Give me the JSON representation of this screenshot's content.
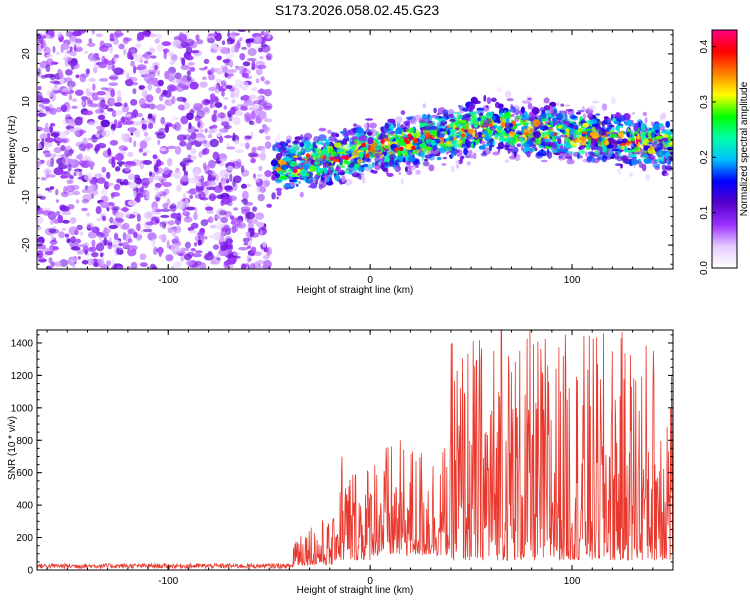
{
  "title": "S173.2026.058.02.45.G23",
  "chart_data": [
    {
      "type": "heatmap",
      "xlabel": "Height of straight line (km)",
      "ylabel": "Frequency (Hz)",
      "xlim": [
        -165,
        150
      ],
      "ylim": [
        -25,
        25
      ],
      "x_ticks": [
        -100,
        0,
        100
      ],
      "y_ticks": [
        -20,
        -10,
        0,
        10,
        20
      ],
      "colorbar": {
        "label": "Normalized spectral amplitude",
        "range": [
          0.0,
          0.43
        ],
        "ticks": [
          0.0,
          0.1,
          0.2,
          0.3,
          0.4
        ],
        "tick_labels": [
          "0.0",
          "0.1",
          "0.2",
          "0.3",
          "0.4"
        ],
        "colormap": [
          "#ffffff",
          "#e6ccff",
          "#9b30ff",
          "#5500cc",
          "#0000ff",
          "#00bfff",
          "#00ffaa",
          "#00ff00",
          "#ffff00",
          "#ff8000",
          "#ff0000",
          "#ff0080"
        ]
      },
      "regions": [
        {
          "x": [
            -165,
            -50
          ],
          "freq_band": [
            -25,
            25
          ],
          "typical_amplitude": 0.06
        },
        {
          "x": [
            -48,
            150
          ],
          "freq_center_start": -4,
          "freq_center_peak": 5,
          "freq_center_peak_x": 60,
          "freq_center_end": 1,
          "band_halfwidth": 6,
          "peak_amplitude": 0.42
        }
      ]
    },
    {
      "type": "line",
      "xlabel": "Height of straight line (km)",
      "ylabel": "SNR (10 * v/v)",
      "xlim": [
        -165,
        150
      ],
      "ylim": [
        0,
        1480
      ],
      "x_ticks": [
        -100,
        0,
        100
      ],
      "y_ticks": [
        0,
        200,
        400,
        600,
        800,
        1000,
        1200,
        1400
      ],
      "color": "#e8372c",
      "segments": [
        {
          "x": [
            -165,
            -38
          ],
          "snr_range": [
            10,
            40
          ]
        },
        {
          "x": [
            -38,
            -18
          ],
          "snr_range": [
            50,
            320
          ]
        },
        {
          "x": [
            -18,
            0
          ],
          "snr_range": [
            100,
            700
          ]
        },
        {
          "x": [
            0,
            40
          ],
          "snr_range": [
            150,
            800
          ]
        },
        {
          "x": [
            40,
            150
          ],
          "snr_range": [
            100,
            1480
          ]
        }
      ],
      "peaks": [
        {
          "x": -14,
          "y": 700
        },
        {
          "x": 65,
          "y": 1475
        },
        {
          "x": 55,
          "y": 1290
        },
        {
          "x": 70,
          "y": 1220
        },
        {
          "x": 97,
          "y": 1250
        },
        {
          "x": 140,
          "y": 1060
        }
      ]
    }
  ]
}
